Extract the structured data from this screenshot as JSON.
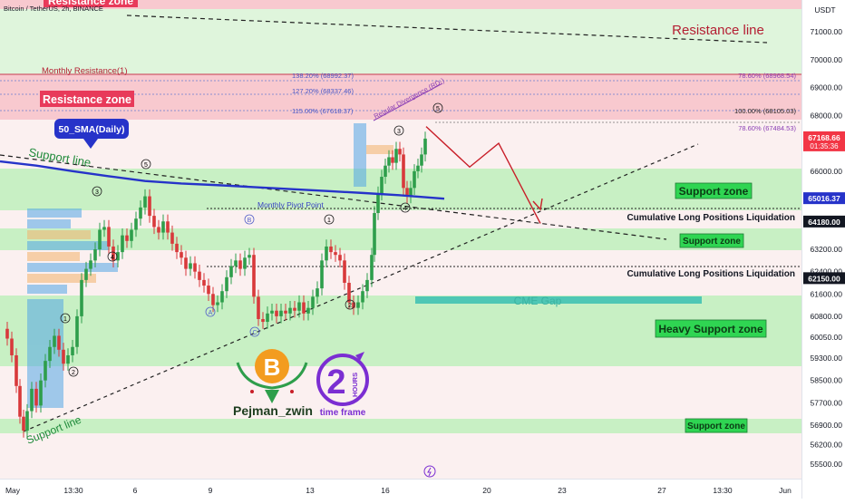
{
  "header": {
    "symbol_line": "Bitcoin / TetherUS, 2h, BINANCE",
    "currency": "USDT"
  },
  "colors": {
    "resistance_fill": "#f8c9cf",
    "support_fill": "#c8f0c4",
    "neutral_band": "#fbf0f0",
    "sma_line": "#2633c9",
    "candle_up": "#2e9e4b",
    "candle_down": "#d8393b",
    "projection": "#c81e28",
    "cme_gap": "#4fc7b5"
  },
  "labels": {
    "resistance_zone_top": "Resistance zone",
    "resistance_zone": "Resistance zone",
    "resistance_line": "Resistance line",
    "monthly_resistance": "Monthly Resistance(1)",
    "sma_callout": "50_SMA(Daily)",
    "support_line_top": "Support line",
    "support_line_bottom": "Support line",
    "monthly_pivot": "Monthly Pivot Point",
    "support_zone_1": "Support zone",
    "support_zone_2": "Support zone",
    "support_zone_3": "Support zone",
    "heavy_support_zone": "Heavy Support zone",
    "cum_long_1": "Cumulative Long Positions Liquidation",
    "cum_long_2": "Cumulative Long Positions Liquidation",
    "cme_gap": "CME Gap",
    "regular_divergence": "Regular Divergence (RD-)",
    "author": "Pejman_zwin",
    "timeframe_caption": "time frame",
    "timeframe_number": "2",
    "timeframe_unit": "HOURS"
  },
  "fib_levels": [
    {
      "text": "138.20% (68992.37)",
      "side": "left"
    },
    {
      "text": "127.20% (68337.46)",
      "side": "left"
    },
    {
      "text": "115.00% (67618.37)",
      "side": "left"
    },
    {
      "text": "78.60% (68968.54)",
      "side": "right"
    },
    {
      "text": "100.00% (68105.03)",
      "side": "right"
    },
    {
      "text": "78.60% (67484.53)",
      "side": "right"
    }
  ],
  "wave_labels": [
    "1",
    "2",
    "3",
    "4",
    "5",
    "A",
    "B",
    "C",
    "1",
    "2",
    "3",
    "4",
    "5"
  ],
  "chart_data": {
    "type": "candlestick",
    "title": "Bitcoin / TetherUS, 2h, BINANCE",
    "x_ticks": [
      "May",
      "13:30",
      "6",
      "9",
      "13",
      "16",
      "20",
      "23",
      "27",
      "13:30",
      "Jun"
    ],
    "y_ticks": [
      71000,
      70000,
      69000,
      68000,
      66000,
      63200,
      62400,
      61600,
      60800,
      60050,
      59300,
      58500,
      57700,
      56900,
      56200,
      55500
    ],
    "ylim": [
      55000,
      71800
    ],
    "current_price": {
      "value": "67168.66",
      "countdown": "01:35:36"
    },
    "price_tags": [
      {
        "value": "65016.37",
        "color": "#2633c9"
      },
      {
        "value": "64180.00",
        "color": "#131722"
      },
      {
        "value": "62150.00",
        "color": "#131722"
      }
    ],
    "series": [
      {
        "name": "50_SMA(Daily)",
        "points": [
          [
            0,
            66350
          ],
          [
            40,
            66200
          ],
          [
            80,
            66000
          ],
          [
            120,
            65820
          ],
          [
            160,
            65650
          ],
          [
            200,
            65560
          ],
          [
            240,
            65500
          ],
          [
            280,
            65430
          ],
          [
            320,
            65360
          ],
          [
            360,
            65290
          ],
          [
            400,
            65220
          ],
          [
            440,
            65140
          ],
          [
            490,
            65016
          ]
        ]
      }
    ],
    "candles_close_path": [
      [
        3,
        60350
      ],
      [
        8,
        60000
      ],
      [
        13,
        59400
      ],
      [
        18,
        58300
      ],
      [
        22,
        57200
      ],
      [
        26,
        56700
      ],
      [
        30,
        57400
      ],
      [
        35,
        58200
      ],
      [
        40,
        57600
      ],
      [
        45,
        58500
      ],
      [
        50,
        59200
      ],
      [
        55,
        59700
      ],
      [
        60,
        60100
      ],
      [
        65,
        59600
      ],
      [
        70,
        59100
      ],
      [
        75,
        59400
      ],
      [
        80,
        59700
      ],
      [
        85,
        60800
      ],
      [
        90,
        62100
      ],
      [
        95,
        62500
      ],
      [
        100,
        62800
      ],
      [
        105,
        63200
      ],
      [
        110,
        63900
      ],
      [
        115,
        64000
      ],
      [
        120,
        63300
      ],
      [
        125,
        62800
      ],
      [
        130,
        63100
      ],
      [
        135,
        63700
      ],
      [
        140,
        63500
      ],
      [
        145,
        63900
      ],
      [
        150,
        64300
      ],
      [
        155,
        64700
      ],
      [
        160,
        65100
      ],
      [
        165,
        64400
      ],
      [
        170,
        64000
      ],
      [
        175,
        63800
      ],
      [
        180,
        64200
      ],
      [
        185,
        63800
      ],
      [
        190,
        63400
      ],
      [
        195,
        63100
      ],
      [
        200,
        62900
      ],
      [
        205,
        62500
      ],
      [
        210,
        62700
      ],
      [
        215,
        62400
      ],
      [
        220,
        62100
      ],
      [
        225,
        61900
      ],
      [
        230,
        61600
      ],
      [
        235,
        61200
      ],
      [
        240,
        61300
      ],
      [
        245,
        61700
      ],
      [
        250,
        62200
      ],
      [
        255,
        62600
      ],
      [
        260,
        62800
      ],
      [
        265,
        62500
      ],
      [
        270,
        62900
      ],
      [
        275,
        63000
      ],
      [
        280,
        61500
      ],
      [
        285,
        60700
      ],
      [
        290,
        60600
      ],
      [
        295,
        60900
      ],
      [
        300,
        61000
      ],
      [
        305,
        60800
      ],
      [
        310,
        61000
      ],
      [
        315,
        60900
      ],
      [
        320,
        61100
      ],
      [
        325,
        61000
      ],
      [
        330,
        61300
      ],
      [
        335,
        60900
      ],
      [
        340,
        61100
      ],
      [
        345,
        61500
      ],
      [
        350,
        61800
      ],
      [
        355,
        62800
      ],
      [
        360,
        63300
      ],
      [
        365,
        63100
      ],
      [
        370,
        63000
      ],
      [
        375,
        62800
      ],
      [
        380,
        62000
      ],
      [
        385,
        61300
      ],
      [
        390,
        61100
      ],
      [
        395,
        61300
      ],
      [
        400,
        61700
      ],
      [
        405,
        62100
      ],
      [
        410,
        63000
      ],
      [
        413,
        64500
      ],
      [
        417,
        65200
      ],
      [
        421,
        65800
      ],
      [
        425,
        66200
      ],
      [
        429,
        66500
      ],
      [
        433,
        66300
      ],
      [
        437,
        66800
      ],
      [
        441,
        66600
      ],
      [
        445,
        65400
      ],
      [
        449,
        65100
      ],
      [
        453,
        65400
      ],
      [
        457,
        66000
      ],
      [
        461,
        66200
      ],
      [
        465,
        66600
      ],
      [
        469,
        67168
      ]
    ],
    "projection_path": [
      [
        470,
        67600
      ],
      [
        518,
        66150
      ],
      [
        550,
        67000
      ],
      [
        596,
        64130
      ]
    ]
  },
  "time_icon": "lightning-icon"
}
